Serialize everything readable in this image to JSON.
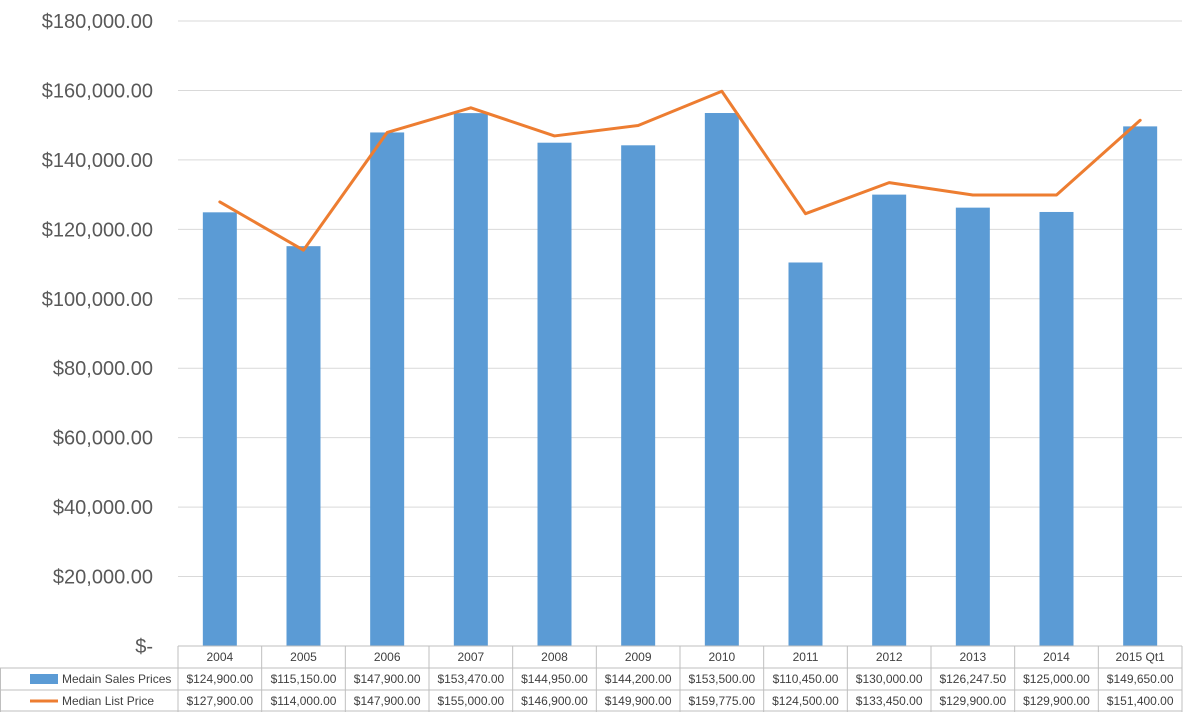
{
  "chart_data": {
    "type": "bar",
    "title": "",
    "xlabel": "",
    "ylabel": "",
    "categories": [
      "2004",
      "2005",
      "2006",
      "2007",
      "2008",
      "2009",
      "2010",
      "2011",
      "2012",
      "2013",
      "2014",
      "2015 Qt1"
    ],
    "ylim": [
      0,
      180000
    ],
    "y_ticks": [
      {
        "value": 0,
        "label": "$-"
      },
      {
        "value": 20000,
        "label": "$20,000.00"
      },
      {
        "value": 40000,
        "label": "$40,000.00"
      },
      {
        "value": 60000,
        "label": "$60,000.00"
      },
      {
        "value": 80000,
        "label": "$80,000.00"
      },
      {
        "value": 100000,
        "label": "$100,000.00"
      },
      {
        "value": 120000,
        "label": "$120,000.00"
      },
      {
        "value": 140000,
        "label": "$140,000.00"
      },
      {
        "value": 160000,
        "label": "$160,000.00"
      },
      {
        "value": 180000,
        "label": "$180,000.00"
      }
    ],
    "grid": true,
    "legend": "data-table",
    "series": [
      {
        "name": "Medain Sales Prices",
        "type": "bar",
        "color": "#5B9BD5",
        "values": [
          124900,
          115150,
          147900,
          153470,
          144950,
          144200,
          153500,
          110450,
          130000,
          126247.5,
          125000,
          149650
        ],
        "labels": [
          "$124,900.00",
          "$115,150.00",
          "$147,900.00",
          "$153,470.00",
          "$144,950.00",
          "$144,200.00",
          "$153,500.00",
          "$110,450.00",
          "$130,000.00",
          "$126,247.50",
          "$125,000.00",
          "$149,650.00"
        ]
      },
      {
        "name": "Median List Price",
        "type": "line",
        "color": "#ED7D31",
        "values": [
          127900,
          114000,
          147900,
          155000,
          146900,
          149900,
          159775,
          124500,
          133450,
          129900,
          129900,
          151400
        ],
        "labels": [
          "$127,900.00",
          "$114,000.00",
          "$147,900.00",
          "$155,000.00",
          "$146,900.00",
          "$149,900.00",
          "$159,775.00",
          "$124,500.00",
          "$133,450.00",
          "$129,900.00",
          "$129,900.00",
          "$151,400.00"
        ]
      }
    ]
  }
}
